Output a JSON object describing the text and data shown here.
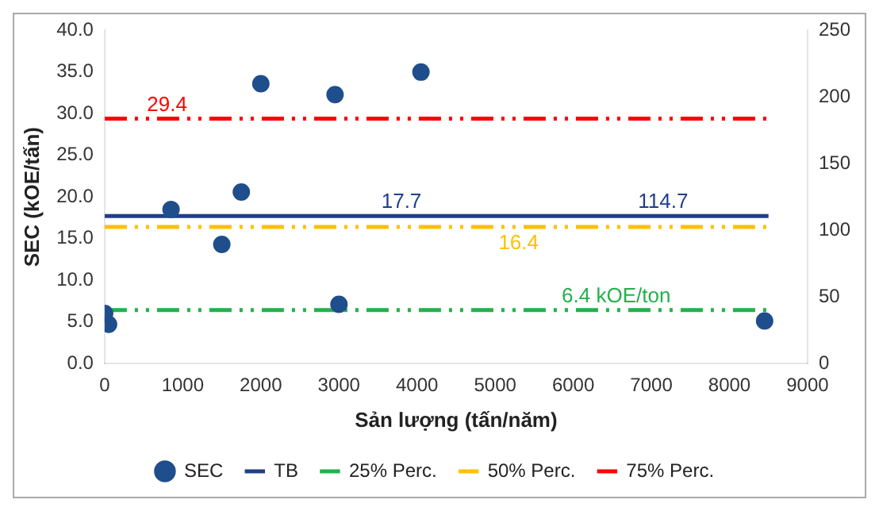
{
  "chart_data": {
    "type": "scatter",
    "xlabel": "Sản lượng (tấn/năm)",
    "ylabel": "SEC (kOE/tấn)",
    "xlim": [
      0,
      9000
    ],
    "xticks": [
      0,
      1000,
      2000,
      3000,
      4000,
      5000,
      6000,
      7000,
      8000,
      9000
    ],
    "ylim": [
      0,
      40
    ],
    "yticks": [
      {
        "value": 0,
        "label": "0.0"
      },
      {
        "value": 5,
        "label": "5.0"
      },
      {
        "value": 10,
        "label": "10.0"
      },
      {
        "value": 15,
        "label": "15.0"
      },
      {
        "value": 20,
        "label": "20.0"
      },
      {
        "value": 25,
        "label": "25.0"
      },
      {
        "value": 30,
        "label": "30.0"
      },
      {
        "value": 35,
        "label": "35.0"
      },
      {
        "value": 40,
        "label": "40.0"
      }
    ],
    "y2lim": [
      0,
      250
    ],
    "y2ticks": [
      0,
      50,
      100,
      150,
      200,
      250
    ],
    "grid": false,
    "legend": "bottom",
    "marker": "circle",
    "series": [
      {
        "name": "SEC",
        "type": "scatter",
        "color": "#1f4e8c",
        "x": [
          0,
          50,
          850,
          1500,
          1750,
          2000,
          2950,
          3000,
          4050,
          8450
        ],
        "values": [
          6.0,
          4.7,
          18.5,
          14.3,
          20.6,
          33.6,
          32.3,
          7.1,
          35.0,
          5.1
        ]
      },
      {
        "name": "TB",
        "type": "line",
        "color": "#1f3f8c",
        "line_style": "solid",
        "marker": "none",
        "x": [
          0,
          8500
        ],
        "values": [
          17.7,
          17.7
        ]
      },
      {
        "name": "25% Perc.",
        "type": "line",
        "color": "#22b14c",
        "line_style": "dashed",
        "marker": "none",
        "x": [
          0,
          8500
        ],
        "values": [
          6.4,
          6.4
        ]
      },
      {
        "name": "50% Perc.",
        "type": "line",
        "color": "#ffc000",
        "line_style": "dashed",
        "marker": "none",
        "x": [
          0,
          8500
        ],
        "values": [
          16.4,
          16.4
        ]
      },
      {
        "name": "75% Perc.",
        "type": "line",
        "color": "#ff0000",
        "line_style": "dashed",
        "marker": "none",
        "x": [
          0,
          8500
        ],
        "values": [
          29.4,
          29.4
        ]
      }
    ],
    "annotations": [
      {
        "text": "29.4",
        "x": 800,
        "y": 29.4
      },
      {
        "text": "17.7",
        "x": 3800,
        "y": 17.7
      },
      {
        "text": "114.7",
        "x": 7150,
        "y": 17.7
      },
      {
        "text": "16.4",
        "x": 5300,
        "y": 16.4
      },
      {
        "text": "6.4 kOE/ton",
        "x": 6550,
        "y": 6.4
      }
    ]
  }
}
